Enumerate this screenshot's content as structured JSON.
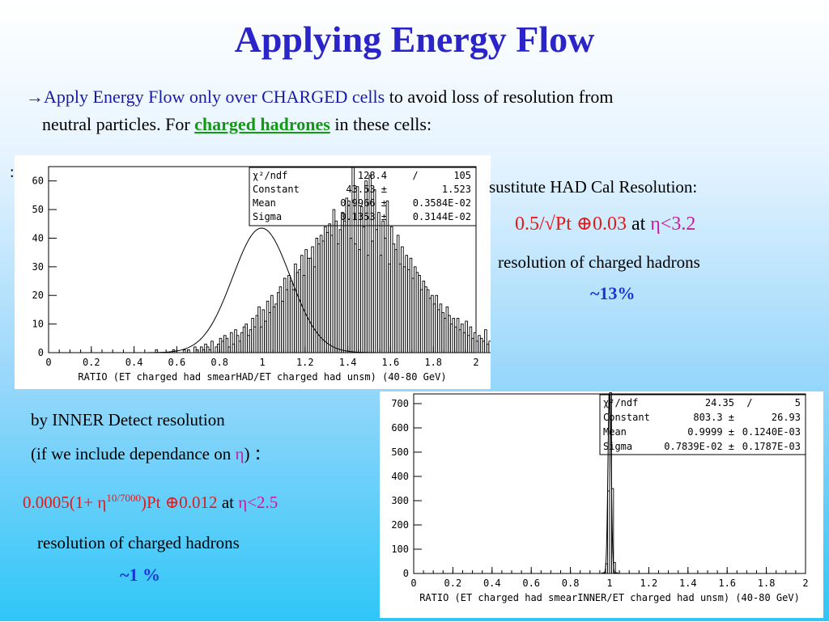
{
  "title": "Applying Energy Flow",
  "intro": {
    "arrow": "→",
    "part1": "Apply Energy Flow only over CHARGED cells",
    "part2": " to avoid loss of resolution from",
    "line2a": "neutral particles. For ",
    "line2b": "charged hadrones",
    "line2c": " in these cells:"
  },
  "colon_left": ":",
  "had": {
    "line1": "sustitute HAD Cal Resolution:",
    "formula": "0.5/√Pt ⊕0.03",
    "at": " at ",
    "eta": "η<3.2",
    "line3": "resolution of charged hadrons",
    "value": "~13%"
  },
  "inner": {
    "line1": "by INNER Detect resolution",
    "line2": "(if we include dependance on ",
    "eta": "η",
    "line2end": ")",
    "colon": " :",
    "formula_a": "0.0005(1+ η",
    "formula_sup": "10/7000",
    "formula_b": ")Pt ⊕0.012",
    "at": "  at ",
    "eta2": "η<2.5",
    "line4": "resolution of charged hadrons",
    "value": "~1 %"
  },
  "chart_data": [
    {
      "type": "histogram",
      "xlabel": "RATIO (ET charged had smearHAD/ET charged had unsm) (40-80 GeV)",
      "xlim": [
        0,
        2
      ],
      "ylim": [
        0,
        65
      ],
      "xticks": [
        "0",
        "0.2",
        "0.4",
        "0.6",
        "0.8",
        "1",
        "1.2",
        "1.4",
        "1.6",
        "1.8",
        "2"
      ],
      "yticks": [
        "0",
        "10",
        "20",
        "30",
        "40",
        "50",
        "60"
      ],
      "stats": [
        [
          "χ²/ndf",
          "128.4",
          "/",
          "105"
        ],
        [
          "Constant",
          "43.53 ±",
          "",
          "1.523"
        ],
        [
          "Mean",
          "0.9966 ±",
          "",
          "0.3584E-02"
        ],
        [
          "Sigma",
          "0.1353 ±",
          "",
          "0.3144E-02"
        ]
      ],
      "fit": {
        "constant": 43.53,
        "mean": 0.9966,
        "sigma": 0.1353
      },
      "bin_width": 0.01,
      "bins_start": 0.5,
      "values": [
        1,
        0,
        0,
        0,
        0,
        0,
        0,
        0,
        1,
        0,
        0,
        0,
        0,
        1,
        0,
        1,
        0,
        0,
        2,
        1,
        0,
        2,
        1,
        3,
        2,
        1,
        4,
        0,
        2,
        3,
        5,
        4,
        6,
        5,
        2,
        7,
        3,
        8,
        6,
        4,
        7,
        9,
        10,
        6,
        8,
        12,
        9,
        13,
        16,
        9,
        15,
        11,
        18,
        14,
        20,
        16,
        17,
        21,
        23,
        18,
        26,
        22,
        27,
        25,
        22,
        31,
        28,
        29,
        34,
        27,
        36,
        33,
        33,
        37,
        30,
        40,
        38,
        41,
        39,
        44,
        42,
        45,
        41,
        50,
        46,
        38,
        43,
        49,
        46,
        54,
        53,
        40,
        65,
        38,
        58,
        36,
        51,
        44,
        60,
        34,
        62,
        39,
        57,
        43,
        49,
        34,
        46,
        40,
        53,
        31,
        44,
        38,
        36,
        41,
        31,
        37,
        30,
        34,
        29,
        33,
        26,
        30,
        28,
        27,
        22,
        25,
        23,
        22,
        19,
        20,
        17,
        20,
        15,
        17,
        14,
        12,
        16,
        13,
        10,
        12,
        9,
        12,
        8,
        10,
        7,
        11,
        6,
        9,
        5,
        7,
        4,
        6,
        5,
        4,
        8,
        3,
        4,
        2,
        5,
        3,
        2,
        4,
        2,
        1,
        3,
        2,
        3,
        1,
        2,
        1,
        1,
        2,
        0,
        1,
        3,
        0,
        0,
        1,
        1,
        0,
        2,
        0,
        0,
        0,
        1,
        0,
        0,
        0,
        0,
        0,
        0
      ]
    },
    {
      "type": "histogram",
      "xlabel": "RATIO (ET charged had smearINNER/ET charged had unsm) (40-80 GeV)",
      "xlim": [
        0,
        2
      ],
      "ylim": [
        0,
        740
      ],
      "xticks": [
        "0",
        "0.2",
        "0.4",
        "0.6",
        "0.8",
        "1",
        "1.2",
        "1.4",
        "1.6",
        "1.8",
        "2"
      ],
      "yticks": [
        "0",
        "100",
        "200",
        "300",
        "400",
        "500",
        "600",
        "700"
      ],
      "stats": [
        [
          "χ²/ndf",
          "24.35",
          "/",
          "5"
        ],
        [
          "Constant",
          "803.3 ±",
          "",
          "26.93"
        ],
        [
          "Mean",
          "0.9999 ±",
          "",
          "0.1240E-03"
        ],
        [
          "Sigma",
          "0.7839E-02 ±",
          "",
          "0.1787E-03"
        ]
      ],
      "fit": {
        "constant": 803.3,
        "mean": 0.9999,
        "sigma": 0.007839
      },
      "bin_width": 0.01,
      "bins_start": 0.95,
      "values": [
        0,
        2,
        4,
        40,
        340,
        745,
        350,
        45,
        3,
        1,
        0
      ]
    }
  ]
}
